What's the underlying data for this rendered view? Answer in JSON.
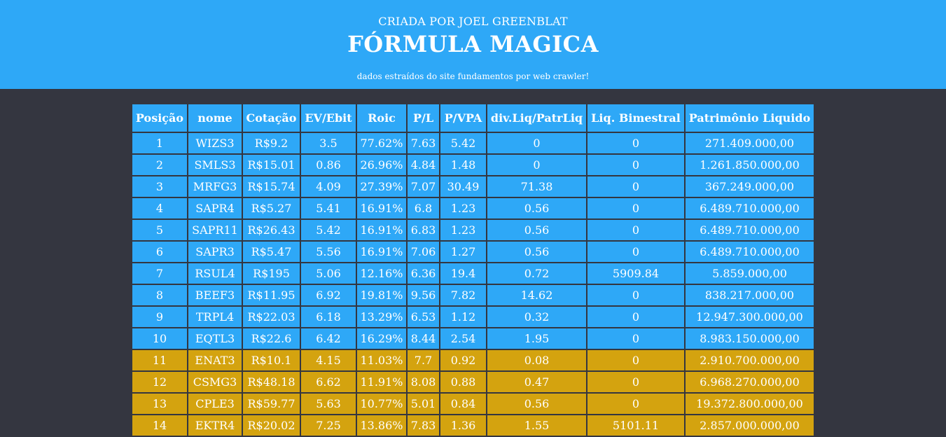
{
  "header": {
    "subtitle": "CRIADA POR JOEL GREENBLAT",
    "title": "FÓRMULA MAGICA",
    "tagline": "dados estraídos do site fundamentos por web crawler!"
  },
  "colors": {
    "header_bg": "#2ea8f7",
    "page_bg": "#343640",
    "top10_row": "#2ea8f7",
    "other_row": "#d4a30f"
  },
  "table": {
    "columns": [
      "Posição",
      "nome",
      "Cotação",
      "EV/Ebit",
      "Roic",
      "P/L",
      "P/VPA",
      "div.Liq/PatrLiq",
      "Liq. Bimestral",
      "Patrimônio Liquido"
    ],
    "rows": [
      [
        "1",
        "WIZS3",
        "R$9.2",
        "3.5",
        "77.62%",
        "7.63",
        "5.42",
        "0",
        "0",
        "271.409.000,00"
      ],
      [
        "2",
        "SMLS3",
        "R$15.01",
        "0.86",
        "26.96%",
        "4.84",
        "1.48",
        "0",
        "0",
        "1.261.850.000,00"
      ],
      [
        "3",
        "MRFG3",
        "R$15.74",
        "4.09",
        "27.39%",
        "7.07",
        "30.49",
        "71.38",
        "0",
        "367.249.000,00"
      ],
      [
        "4",
        "SAPR4",
        "R$5.27",
        "5.41",
        "16.91%",
        "6.8",
        "1.23",
        "0.56",
        "0",
        "6.489.710.000,00"
      ],
      [
        "5",
        "SAPR11",
        "R$26.43",
        "5.42",
        "16.91%",
        "6.83",
        "1.23",
        "0.56",
        "0",
        "6.489.710.000,00"
      ],
      [
        "6",
        "SAPR3",
        "R$5.47",
        "5.56",
        "16.91%",
        "7.06",
        "1.27",
        "0.56",
        "0",
        "6.489.710.000,00"
      ],
      [
        "7",
        "RSUL4",
        "R$195",
        "5.06",
        "12.16%",
        "6.36",
        "19.4",
        "0.72",
        "5909.84",
        "5.859.000,00"
      ],
      [
        "8",
        "BEEF3",
        "R$11.95",
        "6.92",
        "19.81%",
        "9.56",
        "7.82",
        "14.62",
        "0",
        "838.217.000,00"
      ],
      [
        "9",
        "TRPL4",
        "R$22.03",
        "6.18",
        "13.29%",
        "6.53",
        "1.12",
        "0.32",
        "0",
        "12.947.300.000,00"
      ],
      [
        "10",
        "EQTL3",
        "R$22.6",
        "6.42",
        "16.29%",
        "8.44",
        "2.54",
        "1.95",
        "0",
        "8.983.150.000,00"
      ],
      [
        "11",
        "ENAT3",
        "R$10.1",
        "4.15",
        "11.03%",
        "7.7",
        "0.92",
        "0.08",
        "0",
        "2.910.700.000,00"
      ],
      [
        "12",
        "CSMG3",
        "R$48.18",
        "6.62",
        "11.91%",
        "8.08",
        "0.88",
        "0.47",
        "0",
        "6.968.270.000,00"
      ],
      [
        "13",
        "CPLE3",
        "R$59.77",
        "5.63",
        "10.77%",
        "5.01",
        "0.84",
        "0.56",
        "0",
        "19.372.800.000,00"
      ],
      [
        "14",
        "EKTR4",
        "R$20.02",
        "7.25",
        "13.86%",
        "7.83",
        "1.36",
        "1.55",
        "5101.11",
        "2.857.000.000,00"
      ]
    ]
  }
}
